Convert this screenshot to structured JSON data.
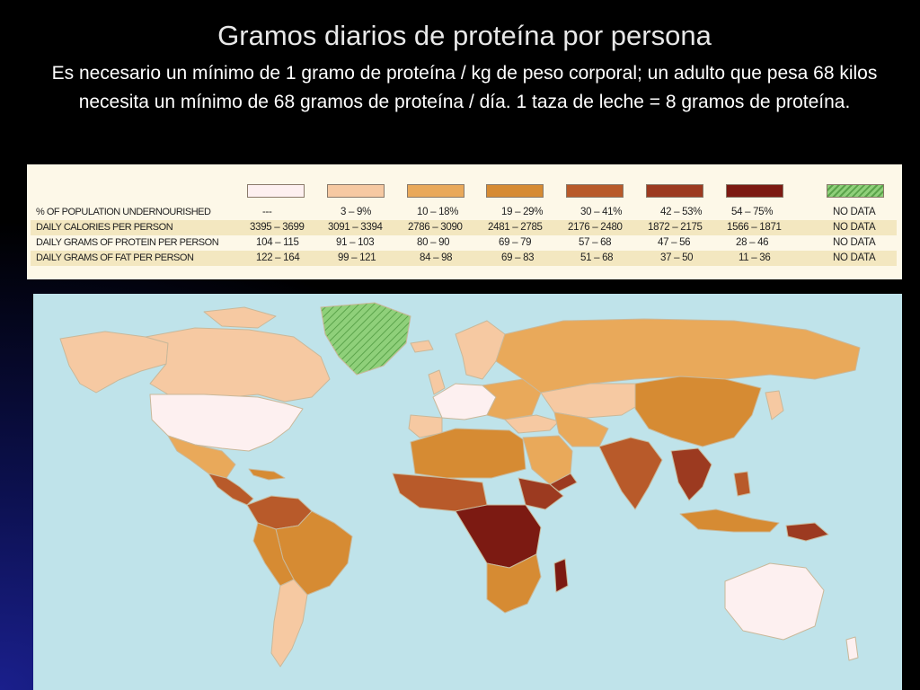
{
  "title": "Gramos diarios de proteína por persona",
  "subtitle": "Es necesario un mínimo de 1 gramo de proteína / kg de peso corporal; un adulto que pesa 68 kilos necesita un mínimo de 68 gramos de proteína / día.  1 taza de leche = 8 gramos de proteína.",
  "legend": {
    "row_labels": [
      "% OF POPULATION UNDERNOURISHED",
      "DAILY CALORIES PER PERSON",
      "DAILY GRAMS OF PROTEIN PER PERSON",
      "DAILY GRAMS OF FAT PER PERSON"
    ],
    "categories": [
      {
        "color": "#fdf0f0",
        "undernourished": "---",
        "calories": "3395 – 3699",
        "protein": "104 – 115",
        "fat": "122 – 164"
      },
      {
        "color": "#f6c9a2",
        "undernourished": "3 – 9%",
        "calories": "3091 – 3394",
        "protein": "91 – 103",
        "fat": "99 – 121"
      },
      {
        "color": "#e9a95a",
        "undernourished": "10 – 18%",
        "calories": "2786 – 3090",
        "protein": "80 – 90",
        "fat": "84 – 98"
      },
      {
        "color": "#d68b33",
        "undernourished": "19 – 29%",
        "calories": "2481 – 2785",
        "protein": "69 – 79",
        "fat": "69 – 83"
      },
      {
        "color": "#b85a2a",
        "undernourished": "30 – 41%",
        "calories": "2176 – 2480",
        "protein": "57 – 68",
        "fat": "51 – 68"
      },
      {
        "color": "#9c3a20",
        "undernourished": "42 – 53%",
        "calories": "1872 – 2175",
        "protein": "47 – 56",
        "fat": "37 – 50"
      },
      {
        "color": "#7c1a12",
        "undernourished": "54 – 75%",
        "calories": "1566 – 1871",
        "protein": "28 – 46",
        "fat": "11 – 36"
      },
      {
        "color": "#7fc46a",
        "undernourished": "NO DATA",
        "calories": "NO DATA",
        "protein": "NO DATA",
        "fat": "NO DATA"
      }
    ]
  },
  "map": {
    "ocean_color": "#bfe3ea",
    "border_color": "#c9b89a"
  }
}
